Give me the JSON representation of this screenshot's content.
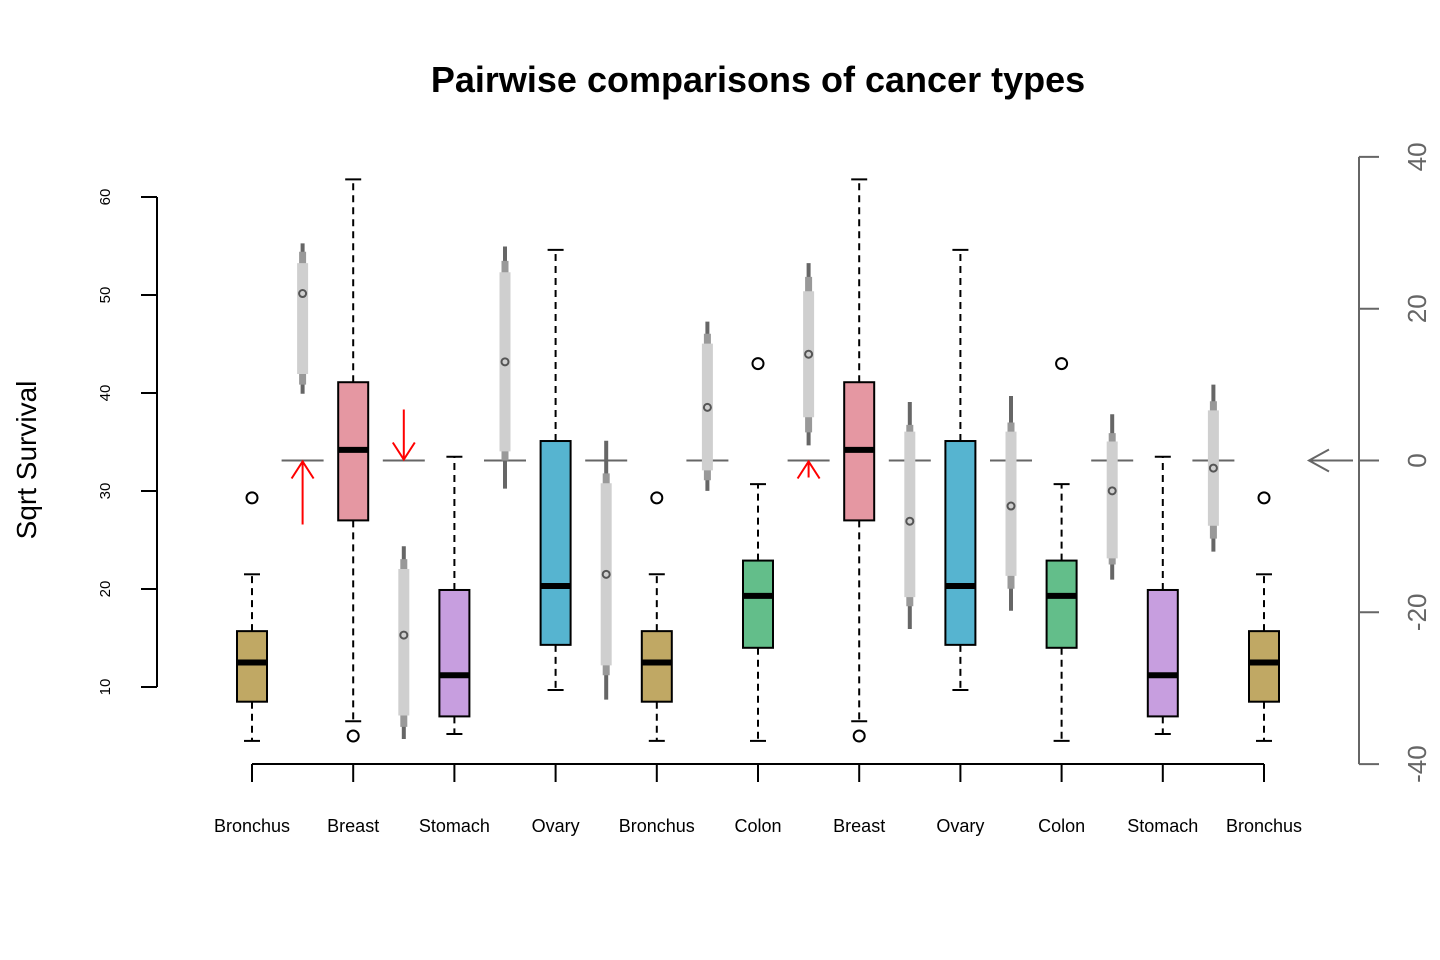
{
  "chart_data": {
    "type": "box",
    "title": "Pairwise comparisons of cancer types",
    "ylabel": "Sqrt Survival",
    "ylim": [
      2,
      62
    ],
    "yticks": [
      10,
      20,
      30,
      40,
      50,
      60
    ],
    "diff_axis": {
      "range": [
        -40,
        40
      ],
      "ticks": [
        40,
        20,
        0,
        -20,
        -40
      ],
      "color": "#666666"
    },
    "categories": [
      "Bronchus",
      "Breast",
      "Stomach",
      "Ovary",
      "Bronchus",
      "Colon",
      "Breast",
      "Ovary",
      "Colon",
      "Stomach",
      "Bronchus"
    ],
    "boxes": [
      {
        "name": "Bronchus",
        "color": "#C0A864",
        "whisker_low": 4.5,
        "q1": 8.5,
        "median": 12.5,
        "q3": 15.7,
        "whisker_high": 21.5,
        "outliers": [
          29.3
        ]
      },
      {
        "name": "Breast",
        "color": "#E597A2",
        "whisker_low": 6.5,
        "q1": 27.0,
        "median": 34.2,
        "q3": 41.1,
        "whisker_high": 61.8,
        "outliers": [
          5.0
        ]
      },
      {
        "name": "Stomach",
        "color": "#C79EDF",
        "whisker_low": 5.2,
        "q1": 7.0,
        "median": 11.2,
        "q3": 19.9,
        "whisker_high": 33.5,
        "outliers": []
      },
      {
        "name": "Ovary",
        "color": "#56B4D0",
        "whisker_low": 9.7,
        "q1": 14.3,
        "median": 20.3,
        "q3": 35.1,
        "whisker_high": 54.6,
        "outliers": []
      },
      {
        "name": "Bronchus",
        "color": "#C0A864",
        "whisker_low": 4.5,
        "q1": 8.5,
        "median": 12.5,
        "q3": 15.7,
        "whisker_high": 21.5,
        "outliers": [
          29.3
        ]
      },
      {
        "name": "Colon",
        "color": "#63BE8A",
        "whisker_low": 4.5,
        "q1": 14.0,
        "median": 19.3,
        "q3": 22.9,
        "whisker_high": 30.7,
        "outliers": [
          43.0
        ]
      },
      {
        "name": "Breast",
        "color": "#E597A2",
        "whisker_low": 6.5,
        "q1": 27.0,
        "median": 34.2,
        "q3": 41.1,
        "whisker_high": 61.8,
        "outliers": [
          5.0
        ]
      },
      {
        "name": "Ovary",
        "color": "#56B4D0",
        "whisker_low": 9.7,
        "q1": 14.3,
        "median": 20.3,
        "q3": 35.1,
        "whisker_high": 54.6,
        "outliers": []
      },
      {
        "name": "Colon",
        "color": "#63BE8A",
        "whisker_low": 4.5,
        "q1": 14.0,
        "median": 19.3,
        "q3": 22.9,
        "whisker_high": 30.7,
        "outliers": [
          43.0
        ]
      },
      {
        "name": "Stomach",
        "color": "#C79EDF",
        "whisker_low": 5.2,
        "q1": 7.0,
        "median": 11.2,
        "q3": 19.9,
        "whisker_high": 33.5,
        "outliers": []
      },
      {
        "name": "Bronchus",
        "color": "#C0A864",
        "whisker_low": 4.5,
        "q1": 8.5,
        "median": 12.5,
        "q3": 15.7,
        "whisker_high": 21.5,
        "outliers": [
          29.3
        ]
      }
    ],
    "differences": [
      {
        "pair": [
          "Bronchus",
          "Breast"
        ],
        "estimate": 22.0,
        "ci95": [
          11.4,
          26.0
        ],
        "ci99": [
          10.0,
          27.5
        ],
        "ci_outer": [
          8.8,
          28.6
        ],
        "arrow": "up"
      },
      {
        "pair": [
          "Breast",
          "Stomach"
        ],
        "estimate": -23.0,
        "ci95": [
          -33.6,
          -14.3
        ],
        "ci99": [
          -35.1,
          -13.0
        ],
        "ci_outer": [
          -36.7,
          -11.3
        ],
        "arrow": "down"
      },
      {
        "pair": [
          "Stomach",
          "Ovary"
        ],
        "estimate": 13.0,
        "ci95": [
          1.2,
          24.8
        ],
        "ci99": [
          0.0,
          26.3
        ],
        "ci_outer": [
          -3.7,
          28.2
        ],
        "arrow": null
      },
      {
        "pair": [
          "Ovary",
          "Bronchus"
        ],
        "estimate": -15.0,
        "ci95": [
          -27.0,
          -3.0
        ],
        "ci99": [
          -28.3,
          -1.7
        ],
        "ci_outer": [
          -31.5,
          2.6
        ],
        "arrow": null
      },
      {
        "pair": [
          "Bronchus",
          "Colon"
        ],
        "estimate": 7.0,
        "ci95": [
          -1.3,
          15.4
        ],
        "ci99": [
          -2.6,
          16.7
        ],
        "ci_outer": [
          -4.0,
          18.3
        ],
        "arrow": null
      },
      {
        "pair": [
          "Colon",
          "Breast"
        ],
        "estimate": 14.0,
        "ci95": [
          5.7,
          22.3
        ],
        "ci99": [
          3.7,
          24.2
        ],
        "ci_outer": [
          2.0,
          26.0
        ],
        "arrow": "up"
      },
      {
        "pair": [
          "Breast",
          "Ovary"
        ],
        "estimate": -8.0,
        "ci95": [
          -18.0,
          3.8
        ],
        "ci99": [
          -19.2,
          4.7
        ],
        "ci_outer": [
          -22.2,
          7.7
        ],
        "arrow": null
      },
      {
        "pair": [
          "Ovary",
          "Colon"
        ],
        "estimate": -6.0,
        "ci95": [
          -15.2,
          3.8
        ],
        "ci99": [
          -16.9,
          5.0
        ],
        "ci_outer": [
          -19.8,
          8.5
        ],
        "arrow": null
      },
      {
        "pair": [
          "Colon",
          "Stomach"
        ],
        "estimate": -4.0,
        "ci95": [
          -12.9,
          2.5
        ],
        "ci99": [
          -13.7,
          3.6
        ],
        "ci_outer": [
          -15.7,
          6.1
        ],
        "arrow": null
      },
      {
        "pair": [
          "Stomach",
          "Bronchus"
        ],
        "estimate": -1.0,
        "ci95": [
          -8.6,
          6.6
        ],
        "ci99": [
          -10.3,
          7.8
        ],
        "ci_outer": [
          -12.0,
          10.0
        ],
        "arrow": null
      }
    ],
    "grid": false,
    "legend": "none"
  }
}
